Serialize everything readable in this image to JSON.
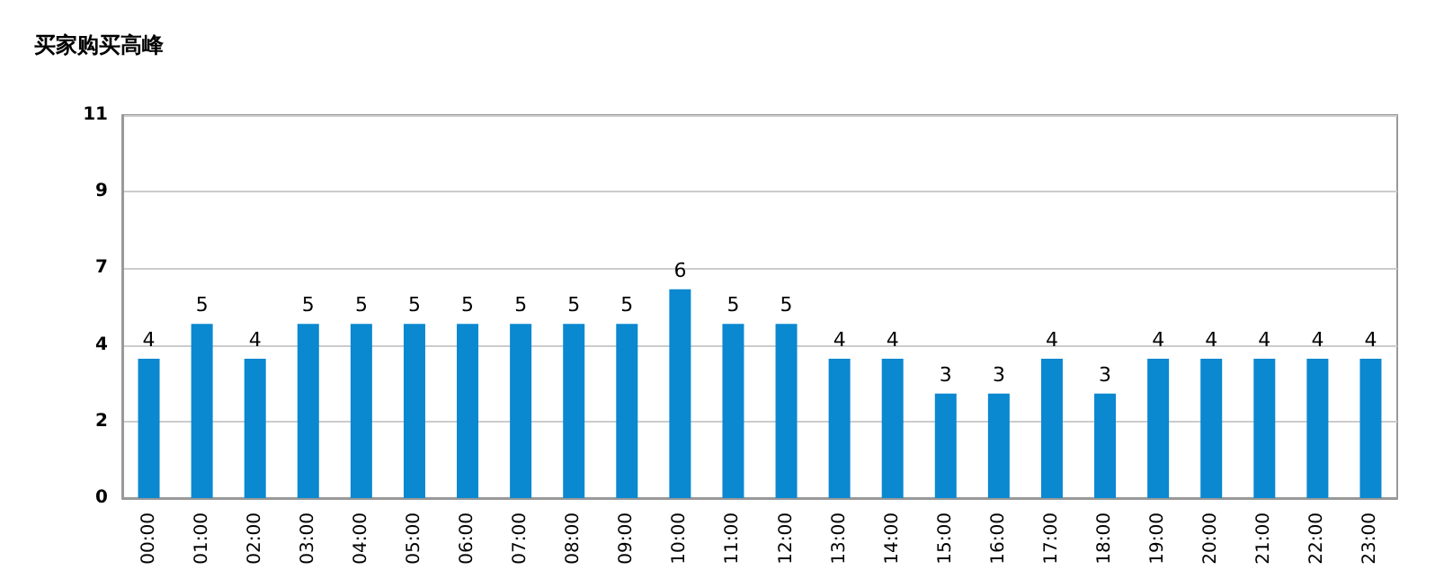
{
  "chart_data": {
    "type": "bar",
    "title": "买家购买高峰",
    "categories": [
      "00:00",
      "01:00",
      "02:00",
      "03:00",
      "04:00",
      "05:00",
      "06:00",
      "07:00",
      "08:00",
      "09:00",
      "10:00",
      "11:00",
      "12:00",
      "13:00",
      "14:00",
      "15:00",
      "16:00",
      "17:00",
      "18:00",
      "19:00",
      "20:00",
      "21:00",
      "22:00",
      "23:00"
    ],
    "values": [
      4,
      5,
      4,
      5,
      5,
      5,
      5,
      5,
      5,
      5,
      6,
      5,
      5,
      4,
      4,
      3,
      3,
      4,
      3,
      4,
      4,
      4,
      4,
      4
    ],
    "color": "#0a88d0",
    "ylim": [
      0,
      11
    ],
    "yticks": [
      0,
      {
        "value": 2.2,
        "label": "2"
      },
      {
        "value": 4.4,
        "label": "4"
      },
      {
        "value": 6.6,
        "label": "7"
      },
      {
        "value": 8.8,
        "label": "9"
      },
      11
    ],
    "grid": "y",
    "data_labels": true
  }
}
